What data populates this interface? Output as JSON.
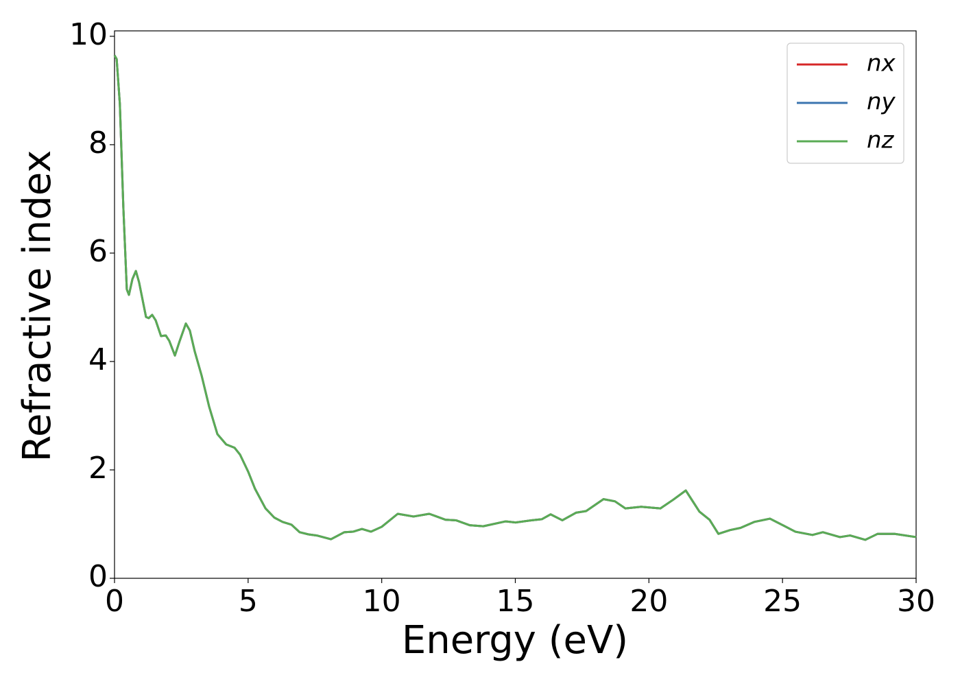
{
  "chart_data": {
    "type": "line",
    "xlabel": "Energy (eV)",
    "ylabel": "Refractive index",
    "xlim": [
      0,
      30
    ],
    "ylim": [
      0,
      10.1
    ],
    "xticks": [
      0,
      5,
      10,
      15,
      20,
      25,
      30
    ],
    "yticks": [
      0,
      2,
      4,
      6,
      8,
      10
    ],
    "legend": "upper right",
    "x": [
      0,
      0.08,
      0.2,
      0.33,
      0.46,
      0.54,
      0.67,
      0.8,
      0.92,
      1.18,
      1.28,
      1.41,
      1.54,
      1.74,
      1.92,
      2.05,
      2.26,
      2.44,
      2.67,
      2.82,
      3.0,
      3.26,
      3.54,
      3.85,
      4.18,
      4.49,
      4.7,
      5.0,
      5.26,
      5.65,
      5.98,
      6.29,
      6.62,
      6.93,
      7.26,
      7.57,
      8.1,
      8.6,
      8.93,
      9.26,
      9.6,
      10.0,
      10.6,
      11.19,
      11.78,
      12.39,
      12.78,
      13.29,
      13.8,
      14.63,
      15.01,
      15.6,
      15.99,
      16.32,
      16.76,
      17.27,
      17.65,
      18.3,
      18.73,
      19.12,
      19.71,
      20.43,
      20.91,
      21.38,
      21.89,
      22.27,
      22.6,
      23.04,
      23.43,
      23.94,
      24.53,
      24.97,
      25.48,
      26.12,
      26.51,
      27.15,
      27.53,
      28.1,
      28.56,
      29.2,
      30
    ],
    "series": [
      {
        "name": "nx",
        "color": "#d62728",
        "values": [
          9.65,
          9.58,
          8.75,
          6.85,
          5.33,
          5.23,
          5.52,
          5.67,
          5.46,
          4.82,
          4.8,
          4.86,
          4.76,
          4.47,
          4.48,
          4.38,
          4.11,
          4.38,
          4.7,
          4.57,
          4.19,
          3.74,
          3.17,
          2.66,
          2.47,
          2.41,
          2.28,
          1.97,
          1.65,
          1.29,
          1.12,
          1.04,
          0.99,
          0.85,
          0.81,
          0.79,
          0.72,
          0.85,
          0.86,
          0.91,
          0.86,
          0.95,
          1.19,
          1.14,
          1.19,
          1.08,
          1.07,
          0.98,
          0.96,
          1.05,
          1.03,
          1.07,
          1.09,
          1.18,
          1.07,
          1.21,
          1.24,
          1.46,
          1.42,
          1.29,
          1.32,
          1.29,
          1.45,
          1.62,
          1.23,
          1.08,
          0.82,
          0.89,
          0.93,
          1.04,
          1.1,
          0.99,
          0.86,
          0.8,
          0.85,
          0.76,
          0.79,
          0.71,
          0.82,
          0.82,
          0.76
        ]
      },
      {
        "name": "ny",
        "color": "#3b75af",
        "values": [
          9.65,
          9.58,
          8.75,
          6.85,
          5.33,
          5.23,
          5.52,
          5.67,
          5.46,
          4.82,
          4.8,
          4.86,
          4.76,
          4.47,
          4.48,
          4.38,
          4.11,
          4.38,
          4.7,
          4.57,
          4.19,
          3.74,
          3.17,
          2.66,
          2.47,
          2.41,
          2.28,
          1.97,
          1.65,
          1.29,
          1.12,
          1.04,
          0.99,
          0.85,
          0.81,
          0.79,
          0.72,
          0.85,
          0.86,
          0.91,
          0.86,
          0.95,
          1.19,
          1.14,
          1.19,
          1.08,
          1.07,
          0.98,
          0.96,
          1.05,
          1.03,
          1.07,
          1.09,
          1.18,
          1.07,
          1.21,
          1.24,
          1.46,
          1.42,
          1.29,
          1.32,
          1.29,
          1.45,
          1.62,
          1.23,
          1.08,
          0.82,
          0.89,
          0.93,
          1.04,
          1.1,
          0.99,
          0.86,
          0.8,
          0.85,
          0.76,
          0.79,
          0.71,
          0.82,
          0.82,
          0.76
        ]
      },
      {
        "name": "nz",
        "color": "#5aab55",
        "values": [
          9.65,
          9.58,
          8.75,
          6.85,
          5.33,
          5.23,
          5.52,
          5.67,
          5.46,
          4.82,
          4.8,
          4.86,
          4.76,
          4.47,
          4.48,
          4.38,
          4.11,
          4.38,
          4.7,
          4.57,
          4.19,
          3.74,
          3.17,
          2.66,
          2.47,
          2.41,
          2.28,
          1.97,
          1.65,
          1.29,
          1.12,
          1.04,
          0.99,
          0.85,
          0.81,
          0.79,
          0.72,
          0.85,
          0.86,
          0.91,
          0.86,
          0.95,
          1.19,
          1.14,
          1.19,
          1.08,
          1.07,
          0.98,
          0.96,
          1.05,
          1.03,
          1.07,
          1.09,
          1.18,
          1.07,
          1.21,
          1.24,
          1.46,
          1.42,
          1.29,
          1.32,
          1.29,
          1.45,
          1.62,
          1.23,
          1.08,
          0.82,
          0.89,
          0.93,
          1.04,
          1.1,
          0.99,
          0.86,
          0.8,
          0.85,
          0.76,
          0.79,
          0.71,
          0.82,
          0.82,
          0.76
        ]
      }
    ]
  }
}
